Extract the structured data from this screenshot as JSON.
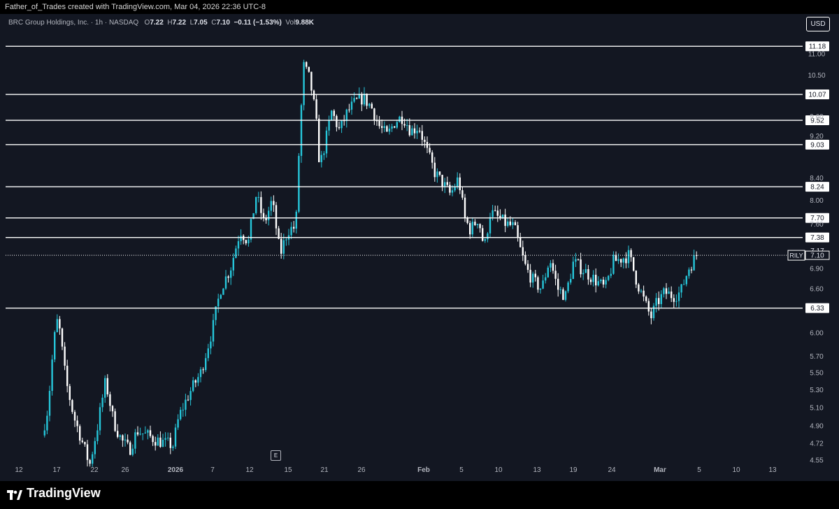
{
  "header": {
    "text": "Father_of_Trades created with TradingView.com, Mar 04, 2026 22:36 UTC-8"
  },
  "legend": {
    "name": "BRC Group Holdings, Inc. · 1h · NASDAQ",
    "o_label": "O",
    "o_value": "7.22",
    "h_label": "H",
    "h_value": "7.22",
    "l_label": "L",
    "l_value": "7.05",
    "c_label": "C",
    "c_value": "7.10",
    "change": "−0.11 (−1.53%)",
    "vol_label": "Vol",
    "vol_value": "9.88K"
  },
  "currency_button": "USD",
  "event_marker": "E",
  "footer": {
    "brand": "TradingView"
  },
  "colors": {
    "background": "#131722",
    "up": "#26c6da",
    "down": "#ffffff",
    "level_line": "#ffffff",
    "axis_text": "#b2b5be"
  },
  "chart_data": {
    "type": "candlestick",
    "symbol": "RILY",
    "timeframe": "1h",
    "ylim": [
      4.55,
      11.15
    ],
    "y_ticks": [
      "11.00",
      "10.50",
      "9.60",
      "9.20",
      "8.40",
      "8.00",
      "7.60",
      "6.90",
      "6.60",
      "6.00",
      "5.70",
      "5.50",
      "5.30",
      "5.10",
      "4.90",
      "4.72",
      "4.55"
    ],
    "x_ticks": [
      "12",
      "17",
      "22",
      "26",
      "2026",
      "7",
      "12",
      "15",
      "21",
      "26",
      "Feb",
      "5",
      "10",
      "13",
      "19",
      "24",
      "Mar",
      "5",
      "10",
      "13"
    ],
    "horizontal_levels": [
      11.18,
      10.07,
      9.52,
      9.03,
      8.24,
      7.7,
      7.38,
      6.33
    ],
    "price_labels": [
      {
        "value": 7.17,
        "text": "7.17"
      },
      {
        "value": 7.1,
        "text": "7.10",
        "tag": "RILY"
      }
    ],
    "last_price": 7.1,
    "close_path": [
      {
        "x": 0.0,
        "y": 4.8
      },
      {
        "x": 0.3,
        "y": 5.1
      },
      {
        "x": 0.6,
        "y": 5.9
      },
      {
        "x": 0.8,
        "y": 6.2
      },
      {
        "x": 1.2,
        "y": 5.4
      },
      {
        "x": 1.6,
        "y": 5.0
      },
      {
        "x": 2.0,
        "y": 4.75
      },
      {
        "x": 2.4,
        "y": 4.5
      },
      {
        "x": 2.8,
        "y": 4.9
      },
      {
        "x": 3.2,
        "y": 5.4
      },
      {
        "x": 3.6,
        "y": 4.95
      },
      {
        "x": 4.0,
        "y": 4.75
      },
      {
        "x": 4.4,
        "y": 4.65
      },
      {
        "x": 4.8,
        "y": 4.85
      },
      {
        "x": 5.3,
        "y": 4.8
      },
      {
        "x": 5.8,
        "y": 4.75
      },
      {
        "x": 6.2,
        "y": 4.72
      },
      {
        "x": 6.6,
        "y": 4.7
      },
      {
        "x": 6.9,
        "y": 5.0
      },
      {
        "x": 7.4,
        "y": 5.25
      },
      {
        "x": 8.0,
        "y": 5.5
      },
      {
        "x": 8.6,
        "y": 6.05
      },
      {
        "x": 9.0,
        "y": 6.6
      },
      {
        "x": 9.5,
        "y": 6.9
      },
      {
        "x": 10.0,
        "y": 7.5
      },
      {
        "x": 10.4,
        "y": 7.3
      },
      {
        "x": 10.8,
        "y": 8.1
      },
      {
        "x": 11.2,
        "y": 7.6
      },
      {
        "x": 11.6,
        "y": 8.0
      },
      {
        "x": 12.0,
        "y": 7.1
      },
      {
        "x": 12.4,
        "y": 7.5
      },
      {
        "x": 12.8,
        "y": 7.55
      },
      {
        "x": 13.0,
        "y": 9.3
      },
      {
        "x": 13.2,
        "y": 10.7
      },
      {
        "x": 13.5,
        "y": 10.4
      },
      {
        "x": 13.8,
        "y": 9.6
      },
      {
        "x": 14.0,
        "y": 8.6
      },
      {
        "x": 14.3,
        "y": 9.1
      },
      {
        "x": 14.6,
        "y": 9.7
      },
      {
        "x": 15.0,
        "y": 9.3
      },
      {
        "x": 15.4,
        "y": 9.7
      },
      {
        "x": 15.8,
        "y": 9.9
      },
      {
        "x": 16.2,
        "y": 10.0
      },
      {
        "x": 16.6,
        "y": 9.8
      },
      {
        "x": 17.0,
        "y": 9.4
      },
      {
        "x": 17.4,
        "y": 9.2
      },
      {
        "x": 17.8,
        "y": 9.5
      },
      {
        "x": 18.2,
        "y": 9.6
      },
      {
        "x": 18.6,
        "y": 9.3
      },
      {
        "x": 19.0,
        "y": 9.4
      },
      {
        "x": 19.4,
        "y": 8.9
      },
      {
        "x": 19.8,
        "y": 8.5
      },
      {
        "x": 20.2,
        "y": 8.3
      },
      {
        "x": 20.6,
        "y": 8.1
      },
      {
        "x": 21.0,
        "y": 8.4
      },
      {
        "x": 21.3,
        "y": 7.7
      },
      {
        "x": 21.6,
        "y": 7.5
      },
      {
        "x": 22.0,
        "y": 7.7
      },
      {
        "x": 22.3,
        "y": 7.2
      },
      {
        "x": 22.6,
        "y": 7.8
      },
      {
        "x": 23.0,
        "y": 7.7
      },
      {
        "x": 23.4,
        "y": 7.6
      },
      {
        "x": 23.8,
        "y": 7.55
      },
      {
        "x": 24.1,
        "y": 7.2
      },
      {
        "x": 24.4,
        "y": 6.9
      },
      {
        "x": 24.8,
        "y": 6.7
      },
      {
        "x": 25.2,
        "y": 6.6
      },
      {
        "x": 25.6,
        "y": 7.05
      },
      {
        "x": 26.0,
        "y": 6.6
      },
      {
        "x": 26.4,
        "y": 6.5
      },
      {
        "x": 26.8,
        "y": 7.0
      },
      {
        "x": 27.2,
        "y": 6.9
      },
      {
        "x": 27.6,
        "y": 6.8
      },
      {
        "x": 28.0,
        "y": 6.7
      },
      {
        "x": 28.4,
        "y": 6.6
      },
      {
        "x": 28.8,
        "y": 7.0
      },
      {
        "x": 29.2,
        "y": 7.05
      },
      {
        "x": 29.6,
        "y": 7.1
      },
      {
        "x": 30.0,
        "y": 6.7
      },
      {
        "x": 30.4,
        "y": 6.4
      },
      {
        "x": 30.7,
        "y": 6.2
      },
      {
        "x": 31.0,
        "y": 6.4
      },
      {
        "x": 31.4,
        "y": 6.55
      },
      {
        "x": 31.8,
        "y": 6.5
      },
      {
        "x": 32.2,
        "y": 6.55
      },
      {
        "x": 32.6,
        "y": 6.9
      },
      {
        "x": 33.0,
        "y": 7.1
      }
    ]
  }
}
